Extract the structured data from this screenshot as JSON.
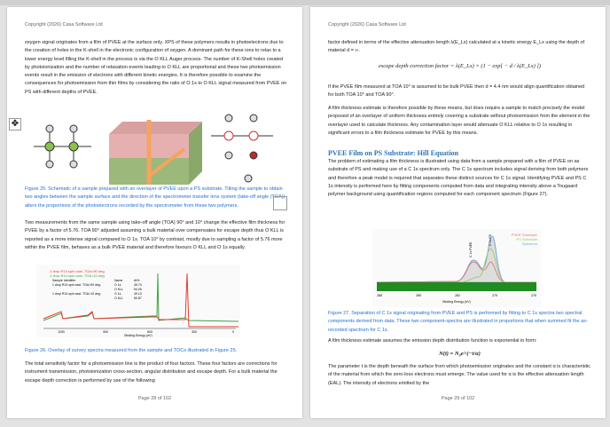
{
  "header": "Copyright (2026) Casa Software Ltd",
  "left": {
    "p1": "oxygen signal originates from a film of PVEE at the surface only. XPS of these polymers results in photoelectrons due to the creation of holes in the K-shell in the electronic configuration of oxygen. A dominant path for these ions to relax to a lower energy level filling the K-shell in the process is via the O KLL Auger process. The number of K-Shell holes created by photoionization and the number of relaxation events leading to O KLL are proportional and these two photoemission events result in the emission of electrons with different kinetic energies. It is therefore possible to examine the consequences for photoemission from thin films by considering the ratio of O 1s to O KLL signal measured from PVEE on PS with different depths of PVEE.",
    "fig25_caption": "Figure 25. Schematic of a sample prepared with an overlayer of PVEE upon a PS substrate. Tilting the sample to obtain two angles between the sample surface and the direction of the spectrometer transfer lens system (take-off angle (TOA)) alters the proportions of the photoelectrons recorded by the spectrometer from these two polymers.",
    "p2": "Two measurements from the same sample using take-off angle (TOA) 90° and 10° change the effective film thickness for PVEE by a factor of 5.76. TOA 90° adjusted assuming a bulk material over compensates for escape depth thus O KLL is reported as a more intense signal compared to O 1s. TOA 10° by contrast, mostly due to sampling a factor of 5.76 more within the PVEE film, behaves as a bulk PVEE material and therefore favours O KLL and O 1s equally.",
    "fig26": {
      "legend": [
        "1 drop R14 spin cast. TOA=90 deg.",
        "1 drop R14 spin cast. TOA=10 deg."
      ],
      "table_header": [
        "Sample Identifier",
        "Name",
        "At%"
      ],
      "rows": [
        [
          "1 drop R14 spin cast. TOA=90 deg.",
          "O 1s",
          "45.74"
        ],
        [
          "",
          "O KLL",
          "54.26"
        ],
        [
          "1 drop R14 spin cast. TOA=10 deg.",
          "O 1s",
          "49.13"
        ],
        [
          "",
          "O KLL",
          "50.87"
        ]
      ],
      "ticks": [
        "1200",
        "900",
        "600",
        "300",
        "0"
      ],
      "xlabel": "Binding Energy (eV)",
      "colors": [
        "#e53935",
        "#43a047"
      ]
    },
    "fig26_caption": "Figure 26. Overlay of survey spectra measured from the sample and TOCs illustrated in Figure 25.",
    "p3": "The total sensitivity factor for a photoemission line is the product of four factors. These four factors are corrections for instrument transmission, photoionization cross-section, angular distribution and escape depth. For a bulk material the escape depth correction is performed by use of the following",
    "footer": "Page 28 of 102"
  },
  "right": {
    "p1": "factor defined in terms of the effective attenuation length λ(E_Lx) calculated at a kinetic energy E_Lx using the depth of material d = ∞.",
    "eq1": "escape depth correction factor = λ(E_Lx) × (1 − exp[ − d / λ(E_Lx) ])",
    "p2": "If the PVEE film measured at TOA 10° is assumed to be bulk PVEE then d = 4.4 nm would align quantification obtained for both TOA 10° and TOA 90°.",
    "p3": "A film thickness estimate is therefore possible by these means, but does require a sample to match precisely the model proposed of an overlayer of uniform thickness entirely covering a substrate without photoemission from the element in the overlayer used to calculate thickness. Any contamination layer would attenuate O KLL relative to O 1s resulting in significant errors to a film thickness estimate for PVEE by this means.",
    "heading": "PVEE Film on PS Substrate: Hill Equation",
    "p4": "The problem of estimating a film thickness is illustrated using data from a sample prepared with a film of PVEE on as substrate of PS and making use of a C 1s spectrum only. The C 1s spectrum includes signal deriving from both polymers and therefore a peak model is required that separates these distinct sources for C 1s signal. Identifying PVEE and PS C 1s intensity is performed here by fitting components computed from data and integrating intensity above a Tougaard polymer background using quantification regions computed for each component spectrum (Figure 27).",
    "fig27": {
      "legend": [
        "PVEE Overlayer",
        "PS Substrate",
        "Spectrum"
      ],
      "peak_labels": [
        "C 1s PVEE",
        "C 1s PS"
      ],
      "ticks": [
        "288",
        "285",
        "282",
        "279",
        "276"
      ],
      "xlabel": "Binding Energy (eV)",
      "colors": [
        "#e57373",
        "#9ccc65",
        "#7aa6e0"
      ]
    },
    "fig27_caption": "Figure 27. Separation of C 1s signal originating from PVEE and PS is performed by fitting to C 1s spectra two spectral components derived from data. These two component-spectra are illustrated in proportions that when summed fit the as-recorded spectrum for C 1s.",
    "p5": "A film thickness estimate assumes the emission depth distribution function is exponential in form:",
    "eq2": "N(t) = N₀e^(−t/α)",
    "p6": "The parameter t is the depth beneath the surface from which photoemission originates and the constant α is characteristic of the material from which the zero-loss electrons must emerge. The value used for α is the effective attenuation length (EAL). The intensity of electrons emitted by the",
    "footer": "Page 29 of 102"
  }
}
